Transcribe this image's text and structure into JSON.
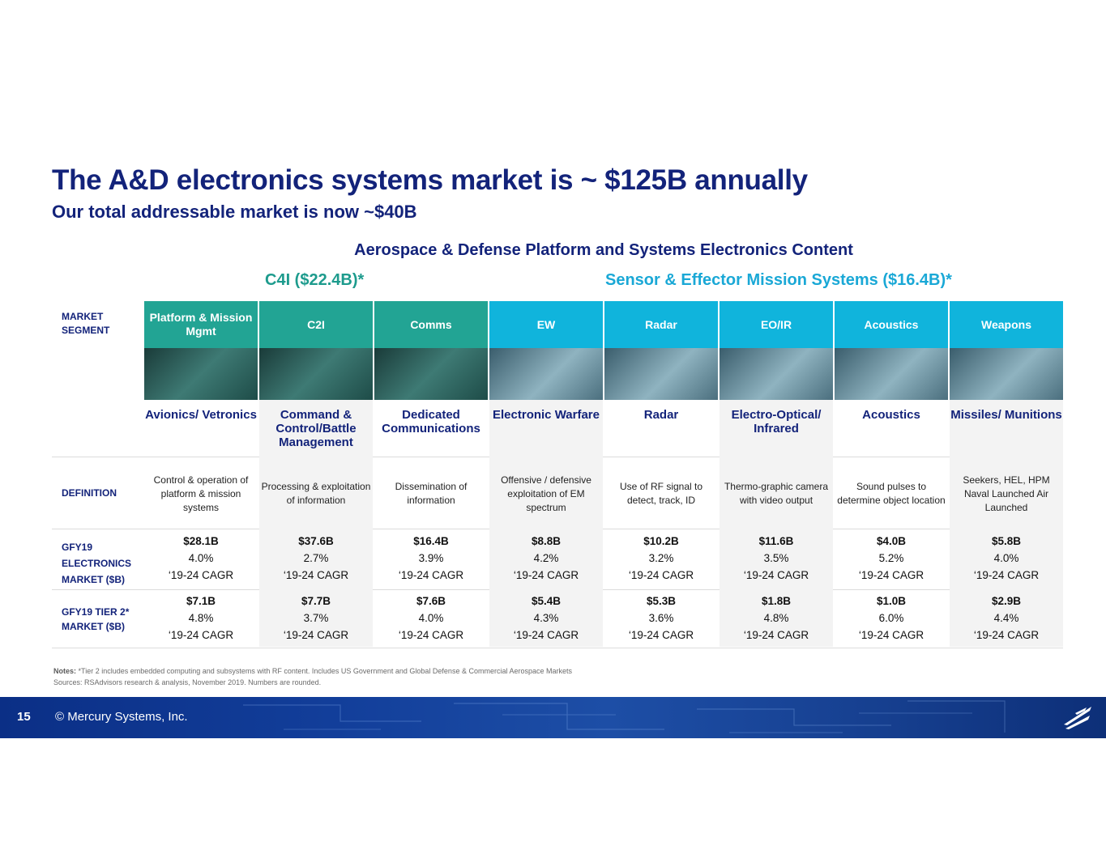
{
  "title": "The A&D electronics systems market is ~ $125B annually",
  "subtitle": "Our total addressable market is now ~$40B",
  "section_heading": "Aerospace & Defense Platform and Systems Electronics Content",
  "groups": {
    "c4i": "C4I ($22.4B)*",
    "sensor": "Sensor & Effector Mission Systems ($16.4B)*"
  },
  "row_labels": {
    "segment": "MARKET SEGMENT",
    "definition": "DEFINITION",
    "electronics_1": "GFY19",
    "electronics_2": "ELECTRONICS",
    "electronics_3": "MARKET ($B)",
    "tier2_1": "GFY19 TIER 2*",
    "tier2_2": "MARKET ($B)"
  },
  "columns": [
    {
      "segment": "Platform & Mission Mgmt",
      "group": "c4i",
      "system": "Avionics/ Vetronics",
      "definition": "Control & operation of platform & mission systems",
      "elec_value": "$28.1B",
      "elec_cagr": "4.0%",
      "elec_period": "‘19-24 CAGR",
      "tier2_value": "$7.1B",
      "tier2_cagr": "4.8%",
      "tier2_period": "‘19-24 CAGR"
    },
    {
      "segment": "C2I",
      "group": "c4i",
      "system": "Command & Control/Battle Management",
      "definition": "Processing & exploitation of information",
      "elec_value": "$37.6B",
      "elec_cagr": "2.7%",
      "elec_period": "‘19-24 CAGR",
      "tier2_value": "$7.7B",
      "tier2_cagr": "3.7%",
      "tier2_period": "‘19-24 CAGR"
    },
    {
      "segment": "Comms",
      "group": "c4i",
      "system": "Dedicated Communications",
      "definition": "Dissemination of information",
      "elec_value": "$16.4B",
      "elec_cagr": "3.9%",
      "elec_period": "‘19-24 CAGR",
      "tier2_value": "$7.6B",
      "tier2_cagr": "4.0%",
      "tier2_period": "‘19-24 CAGR"
    },
    {
      "segment": "EW",
      "group": "sensor",
      "system": "Electronic Warfare",
      "definition": "Offensive / defensive exploitation of EM spectrum",
      "elec_value": "$8.8B",
      "elec_cagr": "4.2%",
      "elec_period": "‘19-24 CAGR",
      "tier2_value": "$5.4B",
      "tier2_cagr": "4.3%",
      "tier2_period": "‘19-24 CAGR"
    },
    {
      "segment": "Radar",
      "group": "sensor",
      "system": "Radar",
      "definition": "Use of RF signal to detect, track, ID",
      "elec_value": "$10.2B",
      "elec_cagr": "3.2%",
      "elec_period": "‘19-24 CAGR",
      "tier2_value": "$5.3B",
      "tier2_cagr": "3.6%",
      "tier2_period": "‘19-24 CAGR"
    },
    {
      "segment": "EO/IR",
      "group": "sensor",
      "system": "Electro-Optical/ Infrared",
      "definition": "Thermo-graphic camera with video output",
      "elec_value": "$11.6B",
      "elec_cagr": "3.5%",
      "elec_period": "‘19-24 CAGR",
      "tier2_value": "$1.8B",
      "tier2_cagr": "4.8%",
      "tier2_period": "‘19-24 CAGR"
    },
    {
      "segment": "Acoustics",
      "group": "sensor",
      "system": "Acoustics",
      "definition": "Sound pulses to determine object location",
      "elec_value": "$4.0B",
      "elec_cagr": "5.2%",
      "elec_period": "‘19-24 CAGR",
      "tier2_value": "$1.0B",
      "tier2_cagr": "6.0%",
      "tier2_period": "‘19-24 CAGR"
    },
    {
      "segment": "Weapons",
      "group": "sensor",
      "system": "Missiles/ Munitions",
      "definition": "Seekers, HEL, HPM Naval Launched Air Launched",
      "elec_value": "$5.8B",
      "elec_cagr": "4.0%",
      "elec_period": "‘19-24 CAGR",
      "tier2_value": "$2.9B",
      "tier2_cagr": "4.4%",
      "tier2_period": "‘19-24 CAGR"
    }
  ],
  "notes": {
    "label": "Notes:",
    "text": "*Tier 2 includes embedded computing and subsystems with RF content. Includes US Government and Global Defense & Commercial Aerospace Markets",
    "sources": "Sources: RSAdvisors research & analysis, November 2019. Numbers are rounded."
  },
  "footer": {
    "page_number": "15",
    "copyright": "© Mercury Systems, Inc."
  },
  "colors": {
    "title": "#13237a",
    "c4i": "#22a494",
    "sensor": "#10b4dc",
    "footer": "#123e9a"
  }
}
